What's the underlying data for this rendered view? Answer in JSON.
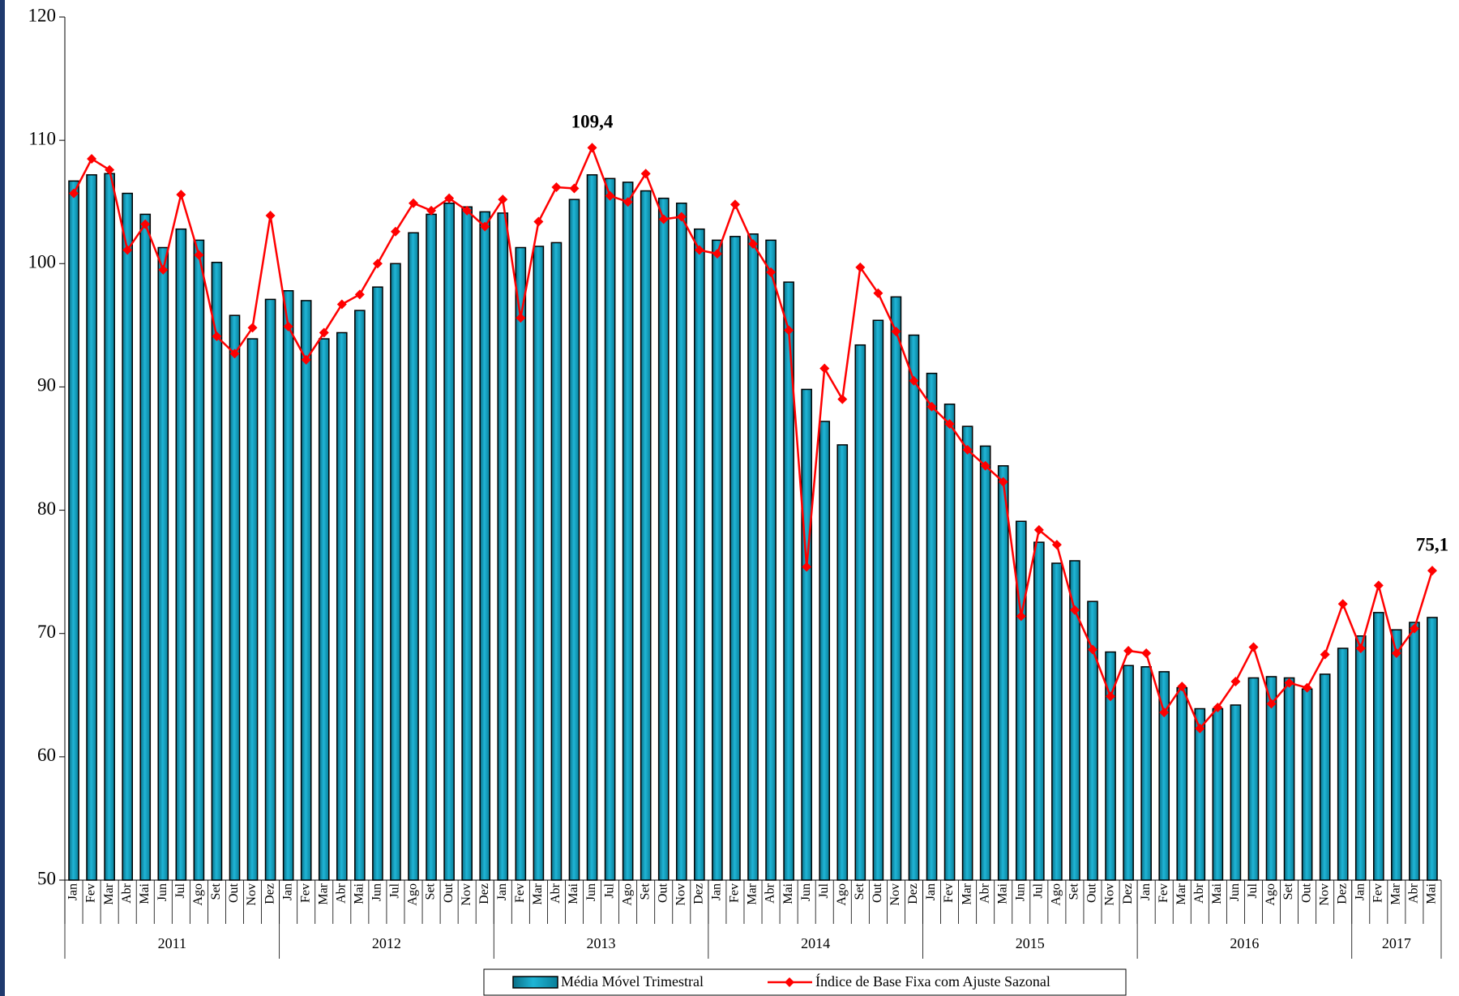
{
  "chart_data": {
    "type": "bar-line",
    "groups": [
      {
        "label": "2011",
        "categories": [
          "Jan",
          "Fev",
          "Mar",
          "Abr",
          "Mai",
          "Jun",
          "Jul",
          "Ago",
          "Set",
          "Out",
          "Nov",
          "Dez"
        ]
      },
      {
        "label": "2012",
        "categories": [
          "Jan",
          "Fev",
          "Mar",
          "Abr",
          "Mai",
          "Jun",
          "Jul",
          "Ago",
          "Set",
          "Out",
          "Nov",
          "Dez"
        ]
      },
      {
        "label": "2013",
        "categories": [
          "Jan",
          "Fev",
          "Mar",
          "Abr",
          "Mai",
          "Jun",
          "Jul",
          "Ago",
          "Set",
          "Out",
          "Nov",
          "Dez"
        ]
      },
      {
        "label": "2014",
        "categories": [
          "Jan",
          "Fev",
          "Mar",
          "Abr",
          "Mai",
          "Jun",
          "Jul",
          "Ago",
          "Set",
          "Out",
          "Nov",
          "Dez"
        ]
      },
      {
        "label": "2015",
        "categories": [
          "Jan",
          "Fev",
          "Mar",
          "Abr",
          "Mai",
          "Jun",
          "Jul",
          "Ago",
          "Set",
          "Out",
          "Nov",
          "Dez"
        ]
      },
      {
        "label": "2016",
        "categories": [
          "Jan",
          "Fev",
          "Mar",
          "Abr",
          "Mai",
          "Jun",
          "Jul",
          "Ago",
          "Set",
          "Out",
          "Nov",
          "Dez"
        ]
      },
      {
        "label": "2017",
        "categories": [
          "Jan",
          "Fev",
          "Mar",
          "Abr",
          "Mai"
        ]
      }
    ],
    "series": [
      {
        "name": "Média Móvel Trimestral",
        "type": "bar",
        "color": "#1fb5d6",
        "values": [
          106.7,
          107.2,
          107.3,
          105.7,
          104.0,
          101.3,
          102.8,
          101.9,
          100.1,
          95.8,
          93.9,
          97.1,
          97.8,
          97.0,
          93.9,
          94.4,
          96.2,
          98.1,
          100.0,
          102.5,
          104.0,
          104.9,
          104.6,
          104.2,
          104.1,
          101.3,
          101.4,
          101.7,
          105.2,
          107.2,
          106.9,
          106.6,
          105.9,
          105.3,
          104.9,
          102.8,
          101.9,
          102.2,
          102.4,
          101.9,
          98.5,
          89.8,
          87.2,
          85.3,
          93.4,
          95.4,
          97.3,
          94.2,
          91.1,
          88.6,
          86.8,
          85.2,
          83.6,
          79.1,
          77.4,
          75.7,
          75.9,
          72.6,
          68.5,
          67.4,
          67.3,
          66.9,
          65.6,
          63.9,
          63.9,
          64.2,
          66.4,
          66.5,
          66.4,
          65.5,
          66.7,
          68.8,
          69.8,
          71.7,
          70.3,
          70.9,
          71.3
        ]
      },
      {
        "name": "Índice de Base Fixa com Ajuste Sazonal",
        "type": "line",
        "color": "#ff0000",
        "values": [
          105.7,
          108.5,
          107.6,
          101.1,
          103.2,
          99.5,
          105.6,
          100.7,
          94.1,
          92.7,
          94.8,
          103.9,
          94.9,
          92.2,
          94.4,
          96.7,
          97.5,
          100.0,
          102.6,
          104.9,
          104.3,
          105.3,
          104.3,
          103.0,
          105.2,
          95.6,
          103.4,
          106.2,
          106.1,
          109.4,
          105.5,
          105.0,
          107.3,
          103.6,
          103.8,
          101.1,
          100.8,
          104.8,
          101.6,
          99.3,
          94.6,
          75.4,
          91.5,
          89.0,
          99.7,
          97.6,
          94.5,
          90.5,
          88.4,
          87.0,
          84.9,
          83.6,
          82.3,
          71.4,
          78.4,
          77.2,
          71.9,
          68.7,
          64.9,
          68.6,
          68.4,
          63.6,
          65.7,
          62.3,
          64.0,
          66.1,
          68.9,
          64.3,
          66.0,
          65.6,
          68.3,
          72.4,
          68.8,
          73.9,
          68.4,
          70.4,
          75.1
        ],
        "value_labels": [
          null,
          null,
          null,
          null,
          null,
          null,
          null,
          null,
          null,
          null,
          null,
          null,
          null,
          null,
          null,
          null,
          null,
          null,
          null,
          null,
          null,
          null,
          null,
          null,
          null,
          null,
          null,
          null,
          null,
          "109,4",
          null,
          null,
          null,
          null,
          null,
          null,
          null,
          null,
          null,
          null,
          null,
          null,
          null,
          null,
          null,
          null,
          null,
          null,
          null,
          null,
          null,
          null,
          null,
          null,
          null,
          null,
          null,
          null,
          null,
          null,
          null,
          null,
          null,
          null,
          null,
          null,
          null,
          null,
          null,
          null,
          null,
          null,
          null,
          null,
          null,
          null,
          "75,1"
        ]
      }
    ],
    "ylim": [
      50,
      120
    ],
    "yticks": [
      50,
      60,
      70,
      80,
      90,
      100,
      110,
      120
    ],
    "legend": "bottom"
  }
}
